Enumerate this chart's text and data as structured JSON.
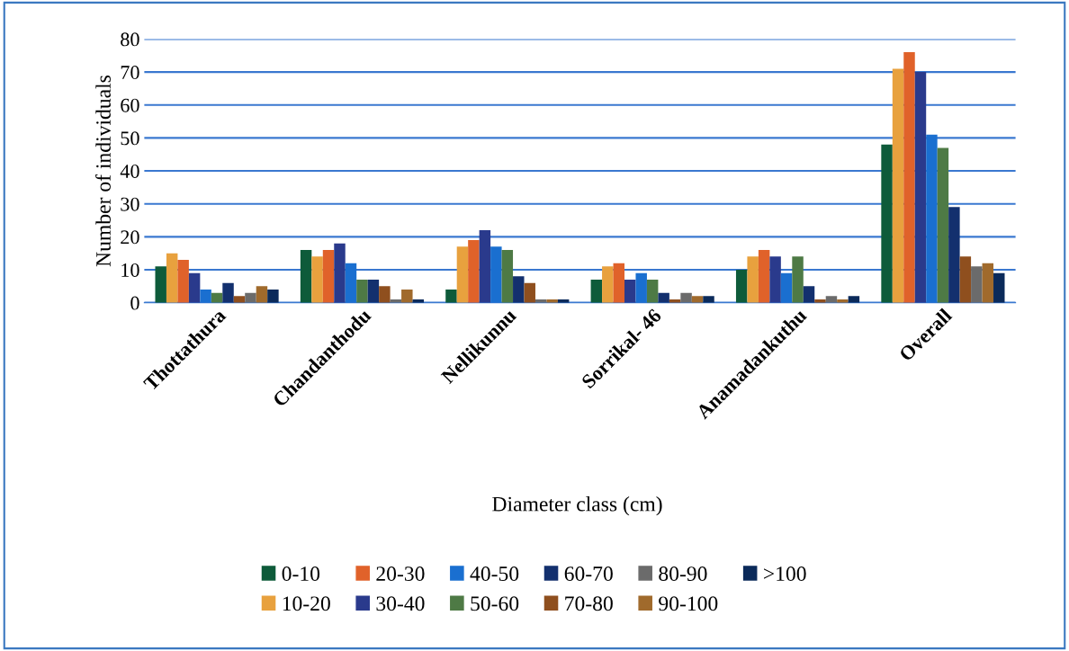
{
  "chart_data": {
    "type": "bar",
    "xlabel": "Diameter class (cm)",
    "ylabel": "Number of individuals",
    "categories": [
      "Thottathura",
      "Chandanthodu",
      "Nellikunnu",
      "Sorrikal- 46",
      "Anamadankuthu",
      "Overall"
    ],
    "ylim": [
      0,
      80
    ],
    "yticks": [
      0,
      10,
      20,
      30,
      40,
      50,
      60,
      70,
      80
    ],
    "grid": "y",
    "legend": "bottom",
    "series": [
      {
        "name": "0-10",
        "color": "#0e5b3a",
        "values": [
          11,
          16,
          4,
          7,
          10,
          48
        ]
      },
      {
        "name": "10-20",
        "color": "#e8a13e",
        "values": [
          15,
          14,
          17,
          11,
          14,
          71
        ]
      },
      {
        "name": "20-30",
        "color": "#e0622a",
        "values": [
          13,
          16,
          19,
          12,
          16,
          76
        ]
      },
      {
        "name": "30-40",
        "color": "#2a3a8c",
        "values": [
          9,
          18,
          22,
          7,
          14,
          70
        ]
      },
      {
        "name": "40-50",
        "color": "#1a6fd0",
        "values": [
          4,
          12,
          17,
          9,
          9,
          51
        ]
      },
      {
        "name": "50-60",
        "color": "#4e7a45",
        "values": [
          3,
          7,
          16,
          7,
          14,
          47
        ]
      },
      {
        "name": "60-70",
        "color": "#13306e",
        "values": [
          6,
          7,
          8,
          3,
          5,
          29
        ]
      },
      {
        "name": "70-80",
        "color": "#8f4f1e",
        "values": [
          2,
          5,
          6,
          1,
          1,
          14
        ]
      },
      {
        "name": "80-90",
        "color": "#6b6b6b",
        "values": [
          3,
          1,
          1,
          3,
          2,
          11
        ]
      },
      {
        "name": "90-100",
        "color": "#a06a2c",
        "values": [
          5,
          4,
          1,
          2,
          1,
          12
        ]
      },
      {
        "name": ">100",
        "color": "#0b2a5a",
        "values": [
          4,
          1,
          1,
          2,
          2,
          9
        ]
      }
    ]
  }
}
